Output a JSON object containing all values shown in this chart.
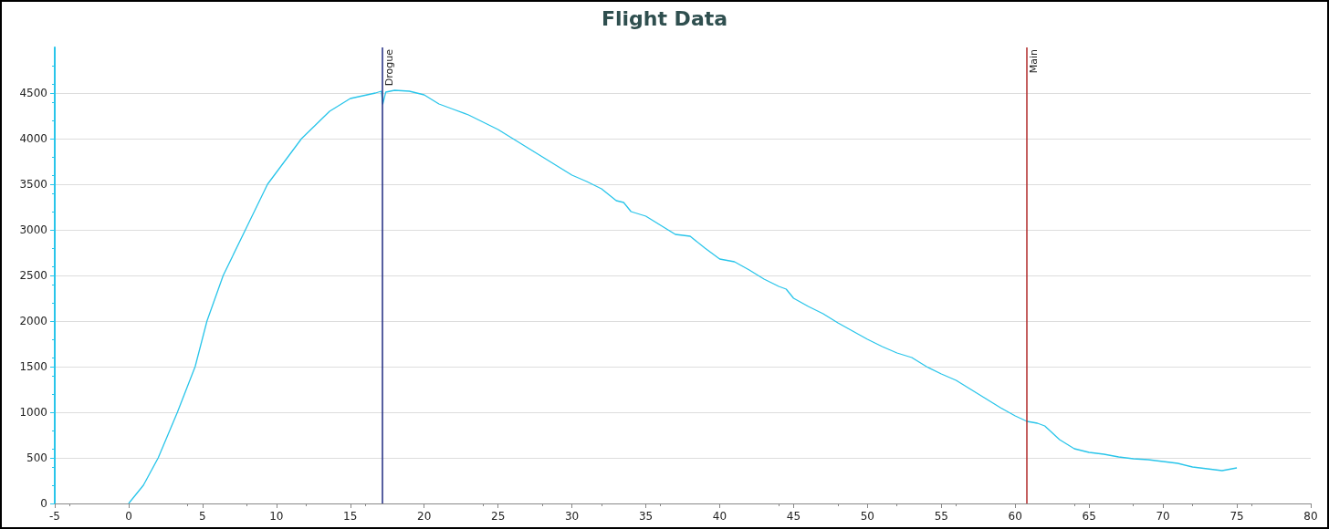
{
  "chart_data": {
    "type": "line",
    "title": "Flight Data",
    "xlim": [
      -5,
      80
    ],
    "xticks": [
      -5,
      0,
      5,
      10,
      15,
      20,
      25,
      30,
      35,
      40,
      45,
      50,
      55,
      60,
      65,
      70,
      75,
      80
    ],
    "ylim": [
      0,
      5000
    ],
    "yticks": [
      0,
      500,
      1000,
      1500,
      2000,
      2500,
      3000,
      3500,
      4000,
      4500
    ],
    "grid": "y",
    "marker": "none",
    "line_style": "solid",
    "series": [
      {
        "color": "#29c5ea",
        "x": [
          0,
          1,
          2,
          3.3,
          4.5,
          5.3,
          6.4,
          7.9,
          9.4,
          11.7,
          13.6,
          15,
          16.7,
          17.1,
          17.2,
          17.4,
          18,
          19,
          20,
          21,
          22,
          23,
          24,
          25,
          26,
          27,
          28,
          29,
          30,
          31,
          32,
          33,
          33.5,
          34,
          35,
          36,
          37,
          38,
          39,
          40,
          41,
          42,
          43,
          44,
          44.5,
          45,
          46,
          47,
          48,
          49,
          50,
          51,
          52,
          53,
          54,
          55,
          56,
          57,
          58,
          59,
          60,
          60.8,
          61.5,
          62,
          63,
          64,
          65,
          66,
          67,
          68,
          69,
          70,
          71,
          72,
          73,
          74,
          75
        ],
        "values": [
          0,
          200,
          500,
          1000,
          1500,
          2000,
          2500,
          3000,
          3500,
          4000,
          4300,
          4440,
          4500,
          4520,
          4380,
          4510,
          4530,
          4520,
          4480,
          4380,
          4320,
          4260,
          4180,
          4100,
          4000,
          3900,
          3800,
          3700,
          3600,
          3530,
          3450,
          3320,
          3300,
          3200,
          3150,
          3050,
          2950,
          2930,
          2800,
          2680,
          2650,
          2560,
          2460,
          2380,
          2350,
          2250,
          2160,
          2080,
          1980,
          1890,
          1800,
          1720,
          1650,
          1600,
          1500,
          1420,
          1350,
          1250,
          1150,
          1050,
          960,
          900,
          880,
          850,
          700,
          600,
          560,
          540,
          510,
          490,
          480,
          460,
          440,
          400,
          380,
          360,
          390
        ]
      }
    ],
    "ref_lines": [
      {
        "axis": "x",
        "value": 17.15,
        "label": "Drogue",
        "color": "#1f2a80"
      },
      {
        "axis": "x",
        "value": 60.8,
        "label": "Main",
        "color": "#b02a2a"
      }
    ]
  }
}
